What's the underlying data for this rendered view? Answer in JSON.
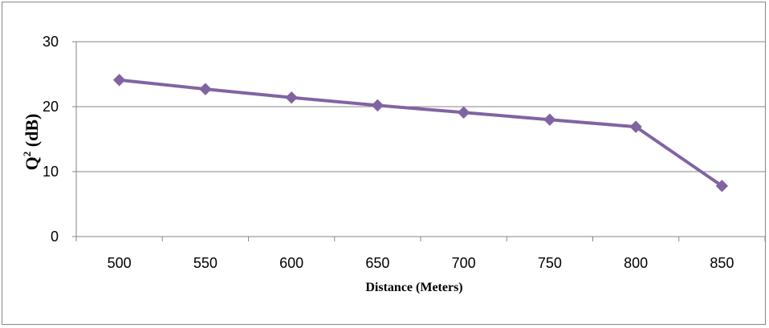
{
  "chart_data": {
    "type": "line",
    "xlabel": "Distance (Meters)",
    "ylabel_base": "Q",
    "ylabel_sup": "2",
    "ylabel_rest": " (dB)",
    "categories": [
      "500",
      "550",
      "600",
      "650",
      "700",
      "750",
      "800",
      "850"
    ],
    "series": [
      {
        "values": [
          24.1,
          22.7,
          21.4,
          20.2,
          19.1,
          18.0,
          16.9,
          7.8
        ]
      }
    ],
    "ylim": [
      0,
      30
    ],
    "yticks": [
      "0",
      "10",
      "20",
      "30"
    ],
    "grid": true,
    "legend": "none",
    "colors": {
      "series": "#8064A2",
      "grid": "#868686",
      "axis": "#868686"
    }
  }
}
